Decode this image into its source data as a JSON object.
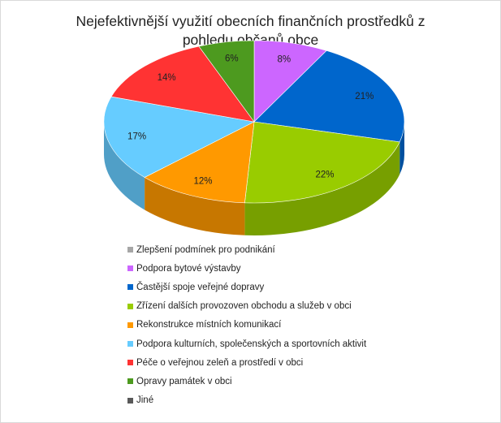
{
  "chart_data": {
    "type": "pie",
    "title_lines": [
      "Nejefektivnější využití obecních finančních prostředků z",
      "pohledu občanů obce"
    ],
    "categories": [
      "Zlepšení podmínek pro podnikání",
      "Podpora bytové výstavby",
      "Častější spoje veřejné dopravy",
      "Zřízení dalších provozoven obchodu a služeb v obci",
      "Rekonstrukce místních komunikací",
      "Podpora kulturních, společenských a sportovních aktivit",
      "Péče o veřejnou zeleň a prostředí v obci",
      "Opravy památek v obci",
      "Jiné"
    ],
    "values": [
      0,
      8,
      21,
      22,
      12,
      17,
      14,
      6,
      0
    ],
    "data_labels": [
      "",
      "8%",
      "21%",
      "22%",
      "12%",
      "17%",
      "14%",
      "6%",
      ""
    ],
    "colors": [
      "#a6a6a6",
      "#cc66ff",
      "#0066cc",
      "#99cc00",
      "#ff9900",
      "#66ccff",
      "#ff3333",
      "#4d9a1f",
      "#595959"
    ],
    "legend_position": "bottom",
    "style": "3d"
  }
}
